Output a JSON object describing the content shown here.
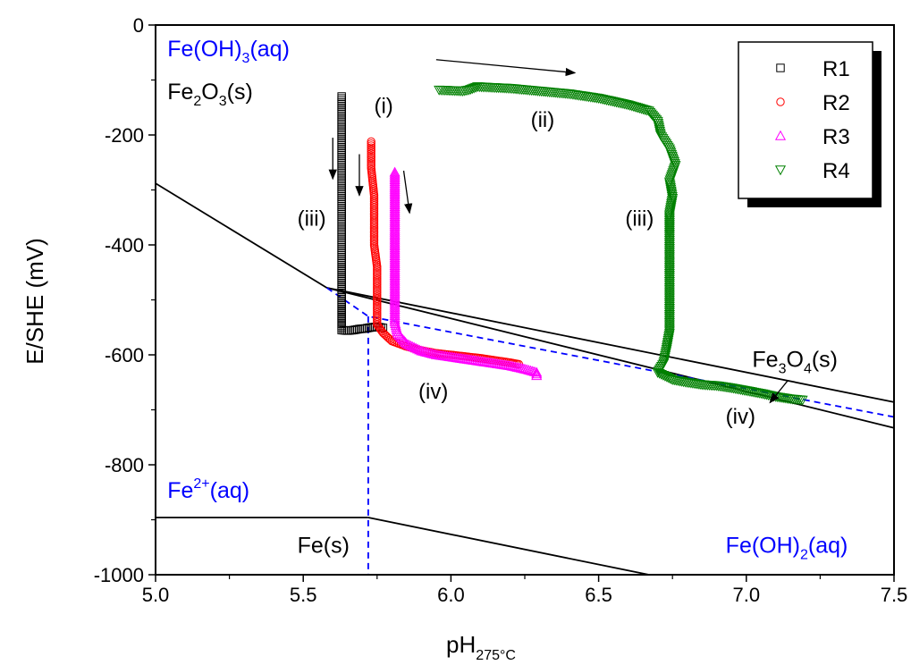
{
  "chart_data": {
    "type": "scatter",
    "xlabel": "pH",
    "xlabel_sub": "275°C",
    "ylabel": "E/SHE (mV)",
    "xlim": [
      5.0,
      7.5
    ],
    "ylim": [
      -1000,
      0
    ],
    "x_ticks": [
      "5.0",
      "5.5",
      "6.0",
      "6.5",
      "7.0",
      "7.5"
    ],
    "y_ticks": [
      "0",
      "-200",
      "-400",
      "-600",
      "-800",
      "-1000"
    ],
    "x_tick_values": [
      5.0,
      5.5,
      6.0,
      6.5,
      7.0,
      7.5
    ],
    "y_tick_values": [
      0,
      -200,
      -400,
      -600,
      -800,
      -1000
    ],
    "legend_position": "top-right",
    "series": [
      {
        "name": "R1",
        "marker": "square",
        "color": "#000000",
        "points": [
          [
            5.63,
            -130
          ],
          [
            5.63,
            -180
          ],
          [
            5.63,
            -230
          ],
          [
            5.63,
            -280
          ],
          [
            5.63,
            -330
          ],
          [
            5.63,
            -380
          ],
          [
            5.63,
            -430
          ],
          [
            5.63,
            -470
          ],
          [
            5.63,
            -510
          ],
          [
            5.63,
            -540
          ],
          [
            5.63,
            -555
          ],
          [
            5.65,
            -556
          ],
          [
            5.67,
            -555
          ],
          [
            5.69,
            -553
          ],
          [
            5.71,
            -552
          ],
          [
            5.73,
            -550
          ],
          [
            5.75,
            -549
          ],
          [
            5.77,
            -551
          ]
        ]
      },
      {
        "name": "R2",
        "marker": "circle",
        "color": "#ff0000",
        "points": [
          [
            5.73,
            -212
          ],
          [
            5.73,
            -260
          ],
          [
            5.74,
            -310
          ],
          [
            5.74,
            -360
          ],
          [
            5.74,
            -400
          ],
          [
            5.75,
            -440
          ],
          [
            5.75,
            -480
          ],
          [
            5.75,
            -520
          ],
          [
            5.75,
            -545
          ],
          [
            5.77,
            -560
          ],
          [
            5.8,
            -575
          ],
          [
            5.85,
            -585
          ],
          [
            5.9,
            -592
          ],
          [
            5.95,
            -597
          ],
          [
            6.0,
            -600
          ],
          [
            6.05,
            -603
          ],
          [
            6.1,
            -606
          ],
          [
            6.15,
            -610
          ],
          [
            6.2,
            -614
          ],
          [
            6.23,
            -617
          ]
        ]
      },
      {
        "name": "R3",
        "marker": "triangle-up",
        "color": "#ff00ff",
        "points": [
          [
            5.81,
            -268
          ],
          [
            5.81,
            -320
          ],
          [
            5.81,
            -370
          ],
          [
            5.81,
            -420
          ],
          [
            5.81,
            -470
          ],
          [
            5.81,
            -510
          ],
          [
            5.81,
            -540
          ],
          [
            5.82,
            -562
          ],
          [
            5.85,
            -580
          ],
          [
            5.9,
            -593
          ],
          [
            5.95,
            -600
          ],
          [
            6.0,
            -604
          ],
          [
            6.05,
            -608
          ],
          [
            6.1,
            -612
          ],
          [
            6.15,
            -616
          ],
          [
            6.2,
            -620
          ],
          [
            6.25,
            -626
          ],
          [
            6.29,
            -632
          ],
          [
            6.29,
            -638
          ]
        ]
      },
      {
        "name": "R4",
        "marker": "triangle-down",
        "color": "#008000",
        "points": [
          [
            5.96,
            -118
          ],
          [
            6.0,
            -119
          ],
          [
            6.04,
            -120
          ],
          [
            6.06,
            -118
          ],
          [
            6.09,
            -112
          ],
          [
            6.2,
            -115
          ],
          [
            6.3,
            -120
          ],
          [
            6.4,
            -125
          ],
          [
            6.5,
            -133
          ],
          [
            6.6,
            -145
          ],
          [
            6.67,
            -156
          ],
          [
            6.7,
            -175
          ],
          [
            6.71,
            -200
          ],
          [
            6.74,
            -225
          ],
          [
            6.76,
            -255
          ],
          [
            6.74,
            -285
          ],
          [
            6.75,
            -315
          ],
          [
            6.74,
            -345
          ],
          [
            6.74,
            -380
          ],
          [
            6.74,
            -410
          ],
          [
            6.74,
            -440
          ],
          [
            6.74,
            -470
          ],
          [
            6.74,
            -500
          ],
          [
            6.74,
            -530
          ],
          [
            6.74,
            -560
          ],
          [
            6.73,
            -590
          ],
          [
            6.72,
            -615
          ],
          [
            6.7,
            -632
          ],
          [
            6.75,
            -645
          ],
          [
            6.8,
            -650
          ],
          [
            6.85,
            -654
          ],
          [
            6.9,
            -656
          ],
          [
            6.95,
            -660
          ],
          [
            7.0,
            -665
          ],
          [
            7.05,
            -670
          ],
          [
            7.1,
            -676
          ],
          [
            7.15,
            -680
          ],
          [
            7.19,
            -682
          ]
        ]
      }
    ],
    "boundary_lines": [
      {
        "style": "solid",
        "color": "#000000",
        "points": [
          [
            5.0,
            -288
          ],
          [
            5.58,
            -478
          ]
        ]
      },
      {
        "style": "solid",
        "color": "#000000",
        "points": [
          [
            5.58,
            -478
          ],
          [
            7.5,
            -686
          ]
        ]
      },
      {
        "style": "solid",
        "color": "#000000",
        "points": [
          [
            5.58,
            -478
          ],
          [
            7.5,
            -733
          ]
        ]
      },
      {
        "style": "solid",
        "color": "#000000",
        "points": [
          [
            5.0,
            -896
          ],
          [
            5.72,
            -896
          ]
        ]
      },
      {
        "style": "solid",
        "color": "#000000",
        "points": [
          [
            5.72,
            -896
          ],
          [
            6.67,
            -1000
          ]
        ]
      },
      {
        "style": "dashed",
        "color": "#0000ff",
        "points": [
          [
            5.58,
            -478
          ],
          [
            5.72,
            -530
          ],
          [
            7.5,
            -713
          ]
        ]
      },
      {
        "style": "dashed",
        "color": "#0000ff",
        "points": [
          [
            5.72,
            -530
          ],
          [
            5.72,
            -1000
          ]
        ]
      }
    ],
    "region_labels": [
      {
        "base": "Fe(OH)",
        "sub": "3",
        "sup": "",
        "tail": "(aq)",
        "color": "#0000ff",
        "x": 5.04,
        "y": -57
      },
      {
        "base": "Fe",
        "sub": "2",
        "sup": "",
        "tail": "O",
        "sub2": "3",
        "tail2": "(s)",
        "color": "#000000",
        "x": 5.04,
        "y": -135
      },
      {
        "base": "Fe",
        "sub": "",
        "sup": "2+",
        "tail": "(aq)",
        "color": "#0000ff",
        "x": 5.04,
        "y": -860
      },
      {
        "base": "Fe(s)",
        "sub": "",
        "sup": "",
        "tail": "",
        "color": "#000000",
        "x": 5.48,
        "y": -960
      },
      {
        "base": "Fe(OH)",
        "sub": "2",
        "sup": "",
        "tail": "(aq)",
        "color": "#0000ff",
        "x": 6.93,
        "y": -960
      },
      {
        "base": "Fe",
        "sub": "3",
        "sup": "",
        "tail": "O",
        "sub2": "4",
        "tail2": "(s)",
        "color": "#000000",
        "x": 7.02,
        "y": -622
      }
    ],
    "annotations": [
      {
        "text": "(i)",
        "x": 5.74,
        "y": -160
      },
      {
        "text": "(ii)",
        "x": 6.27,
        "y": -185
      },
      {
        "text": "(iii)",
        "x": 5.48,
        "y": -365
      },
      {
        "text": "(iii)",
        "x": 6.59,
        "y": -365
      },
      {
        "text": "(iv)",
        "x": 5.89,
        "y": -680
      },
      {
        "text": "(iv)",
        "x": 6.93,
        "y": -725
      }
    ],
    "arrows": [
      {
        "from": [
          5.6,
          -205
        ],
        "to": [
          5.6,
          -280
        ]
      },
      {
        "from": [
          5.69,
          -235
        ],
        "to": [
          5.69,
          -310
        ]
      },
      {
        "from": [
          5.84,
          -265
        ],
        "to": [
          5.86,
          -342
        ]
      },
      {
        "from": [
          5.95,
          -63
        ],
        "to": [
          6.42,
          -87
        ]
      },
      {
        "from": [
          7.14,
          -647
        ],
        "to": [
          7.08,
          -687
        ]
      }
    ]
  }
}
